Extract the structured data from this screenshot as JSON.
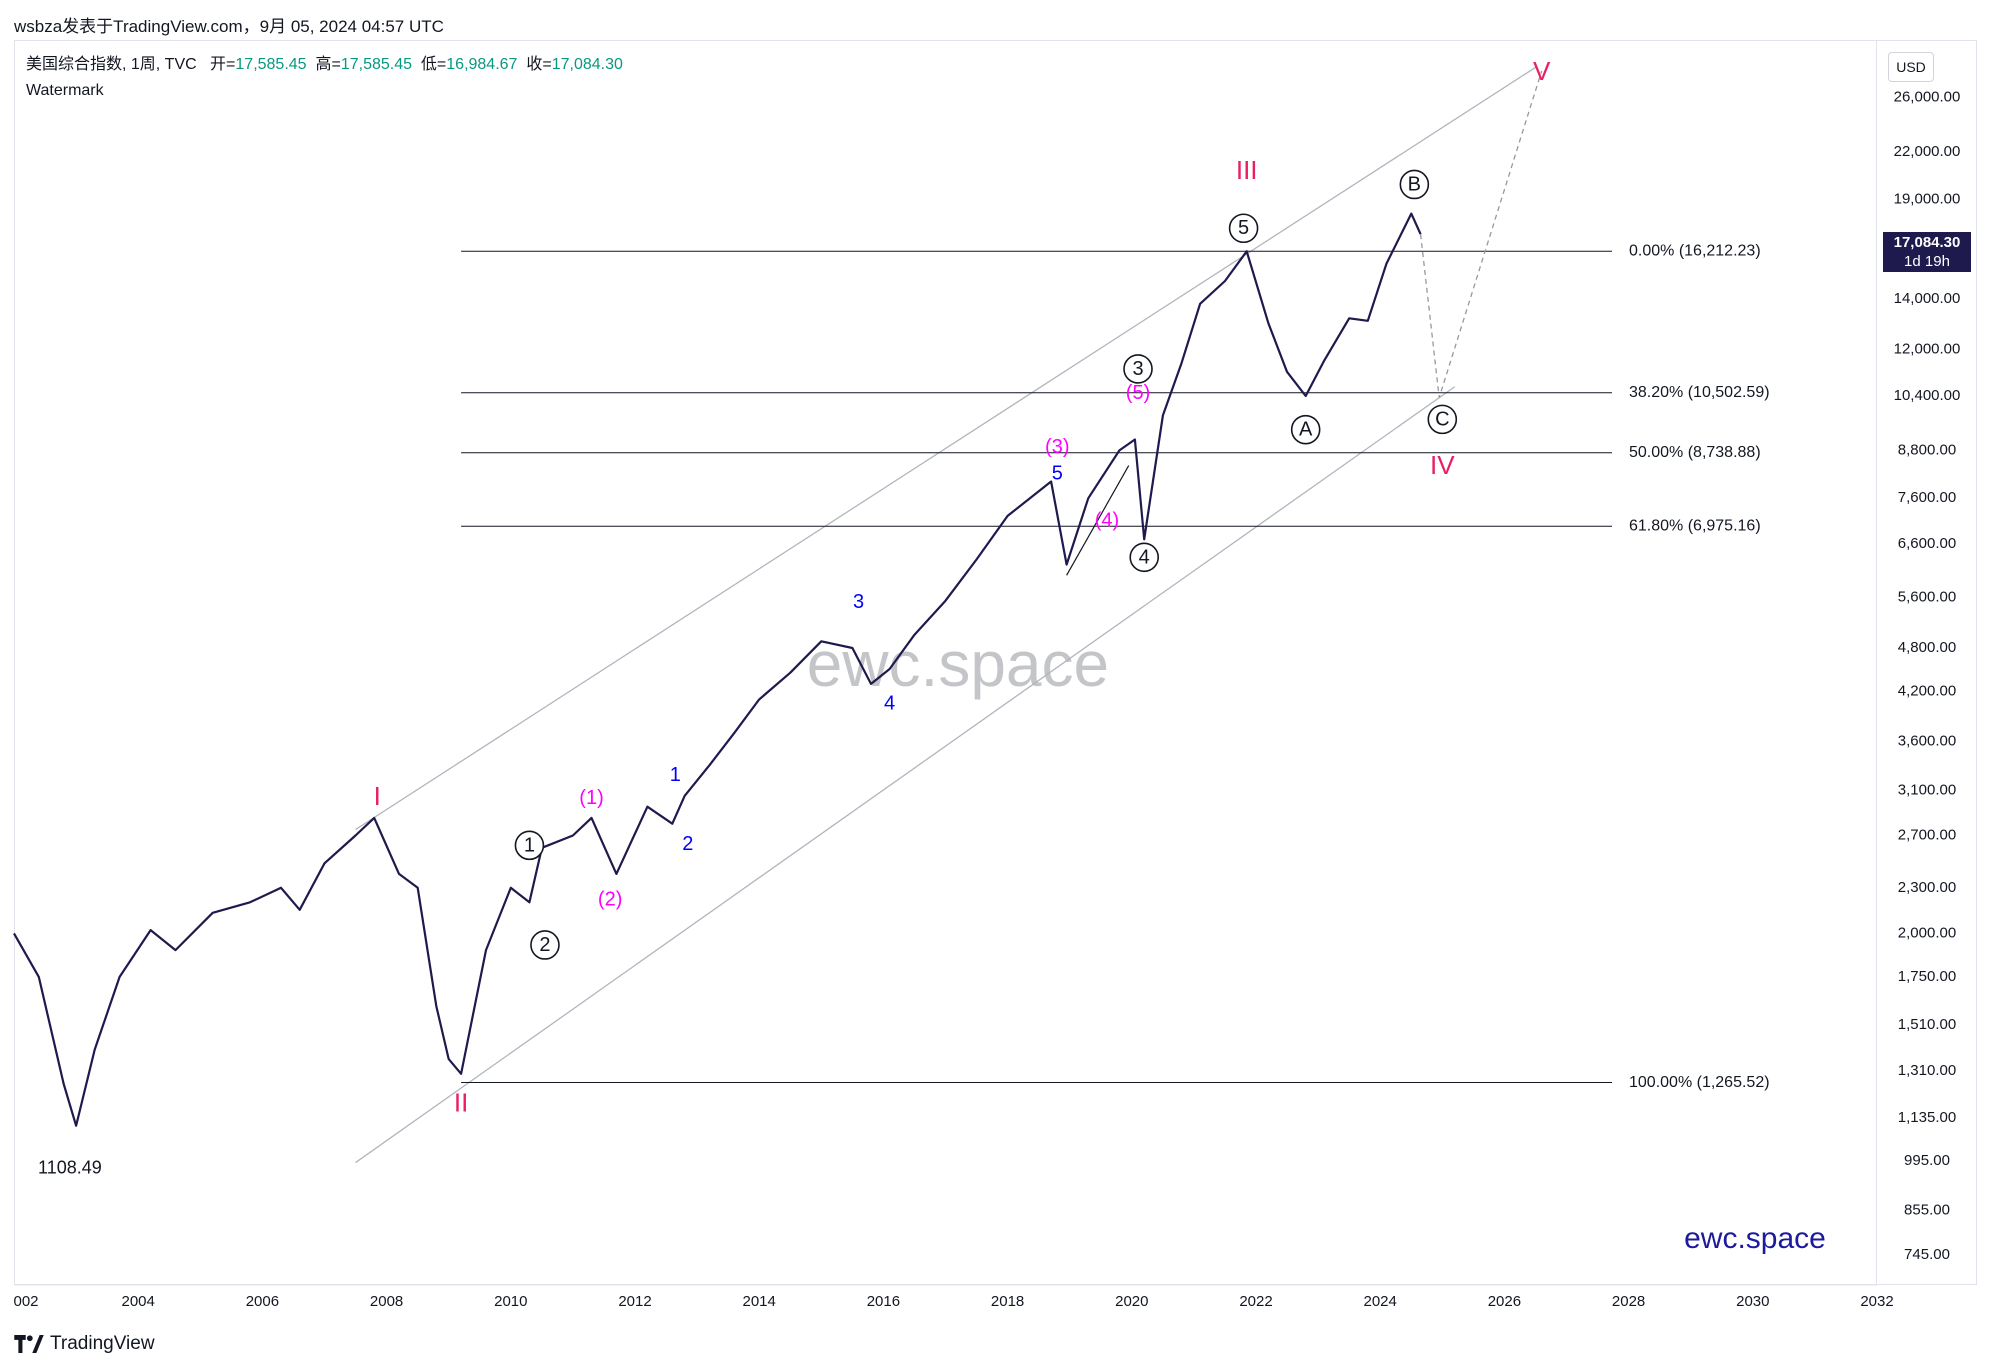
{
  "header": {
    "publisher": "wsbza发表于TradingView.com，9月 05, 2024 04:57 UTC"
  },
  "legend": {
    "symbol": "美国综合指数, 1周, TVC",
    "open_label": "开",
    "open": "17,585.45",
    "high_label": "高",
    "high": "17,585.45",
    "low_label": "低",
    "low": "16,984.67",
    "close_label": "收",
    "close": "17,084.30",
    "watermark_label": "Watermark"
  },
  "price_axis": {
    "currency_button": "USD",
    "current_price": "17,084.30",
    "countdown": "1d 19h"
  },
  "watermark": "ewc.space",
  "brand": "ewc.space",
  "footer": {
    "logo_text": "TradingView"
  },
  "colors": {
    "line": "#1e1a4d",
    "primary_wave": "#e91e63",
    "intermediate_wave": "#ff00ff",
    "minor_wave": "#0000ff",
    "circle_wave": "#131722",
    "channel": "#b2b5be",
    "fib": "#131722"
  },
  "chart_data": {
    "type": "line",
    "scale": "log",
    "x_range": [
      2002,
      2032
    ],
    "y_range": [
      680,
      31000
    ],
    "x_ticks": [
      "002",
      "2004",
      "2006",
      "2008",
      "2010",
      "2012",
      "2014",
      "2016",
      "2018",
      "2020",
      "2022",
      "2024",
      "2026",
      "2028",
      "2030",
      "2032"
    ],
    "y_ticks": [
      "26,000.00",
      "22,000.00",
      "19,000.00",
      "14,000.00",
      "12,000.00",
      "10,400.00",
      "8,800.00",
      "7,600.00",
      "6,600.00",
      "5,600.00",
      "4,800.00",
      "4,200.00",
      "3,600.00",
      "3,100.00",
      "2,700.00",
      "2,300.00",
      "2,000.00",
      "1,750.00",
      "1,510.00",
      "1,310.00",
      "1,135.00",
      "995.00",
      "855.00",
      "745.00"
    ],
    "y_tick_values": [
      26000,
      22000,
      19000,
      14000,
      12000,
      10400,
      8800,
      7600,
      6600,
      5600,
      4800,
      4200,
      3600,
      3100,
      2700,
      2300,
      2000,
      1750,
      1510,
      1310,
      1135,
      995,
      855,
      745
    ],
    "series": [
      {
        "x": [
          2002.0,
          2002.4,
          2002.8,
          2003.0,
          2003.3,
          2003.7,
          2004.2,
          2004.6,
          2005.2,
          2005.8,
          2006.3,
          2006.6,
          2007.0,
          2007.5,
          2007.8,
          2008.2,
          2008.5,
          2008.8,
          2009.0,
          2009.2,
          2009.6,
          2010.0,
          2010.3,
          2010.5,
          2011.0,
          2011.3,
          2011.7,
          2012.2,
          2012.6,
          2012.8,
          2013.2,
          2013.6,
          2014.0,
          2014.5,
          2015.0,
          2015.5,
          2015.8,
          2016.1,
          2016.5,
          2017.0,
          2017.5,
          2018.0,
          2018.7,
          2018.95,
          2019.3,
          2019.8,
          2020.05,
          2020.2,
          2020.5,
          2020.8,
          2021.1,
          2021.5,
          2021.85,
          2022.2,
          2022.5,
          2022.8,
          2023.1,
          2023.5,
          2023.8,
          2024.1,
          2024.5,
          2024.65
        ],
        "y": [
          2000,
          1750,
          1260,
          1108.49,
          1400,
          1750,
          2020,
          1900,
          2130,
          2200,
          2300,
          2150,
          2480,
          2700,
          2850,
          2400,
          2300,
          1600,
          1360,
          1300,
          1900,
          2300,
          2200,
          2600,
          2700,
          2850,
          2400,
          2950,
          2800,
          3050,
          3350,
          3700,
          4100,
          4450,
          4900,
          4800,
          4300,
          4500,
          5000,
          5550,
          6300,
          7200,
          8000,
          6200,
          7600,
          8800,
          9100,
          6700,
          9800,
          11500,
          13800,
          14800,
          16212,
          13000,
          11200,
          10400,
          11600,
          13200,
          13100,
          15600,
          18200,
          17084
        ]
      }
    ],
    "fib_levels": [
      {
        "label": "0.00% (16,212.23)",
        "value": 16212.23
      },
      {
        "label": "38.20% (10,502.59)",
        "value": 10502.59
      },
      {
        "label": "50.00% (8,738.88)",
        "value": 8738.88
      },
      {
        "label": "61.80% (6,975.16)",
        "value": 6975.16
      },
      {
        "label": "100.00% (1,265.52)",
        "value": 1265.52
      }
    ],
    "annotations": [
      {
        "text": "1108.49",
        "x": 2002.9,
        "y": 975,
        "kind": "plain"
      },
      {
        "text": "I",
        "x": 2007.85,
        "y": 3050,
        "kind": "primary"
      },
      {
        "text": "II",
        "x": 2009.2,
        "y": 1190,
        "kind": "primary"
      },
      {
        "text": "III",
        "x": 2021.85,
        "y": 20800,
        "kind": "primary"
      },
      {
        "text": "IV",
        "x": 2025.0,
        "y": 8420,
        "kind": "primary"
      },
      {
        "text": "V",
        "x": 2026.6,
        "y": 28200,
        "kind": "primary"
      },
      {
        "text": "1",
        "x": 2010.3,
        "y": 2620,
        "kind": "circle"
      },
      {
        "text": "2",
        "x": 2010.55,
        "y": 1930,
        "kind": "circle"
      },
      {
        "text": "3",
        "x": 2020.1,
        "y": 11300,
        "kind": "circle"
      },
      {
        "text": "4",
        "x": 2020.2,
        "y": 6340,
        "kind": "circle"
      },
      {
        "text": "5",
        "x": 2021.8,
        "y": 17400,
        "kind": "circle"
      },
      {
        "text": "A",
        "x": 2022.8,
        "y": 9380,
        "kind": "circle"
      },
      {
        "text": "B",
        "x": 2024.55,
        "y": 19900,
        "kind": "circle"
      },
      {
        "text": "C",
        "x": 2025.0,
        "y": 9680,
        "kind": "circle"
      },
      {
        "text": "(1)",
        "x": 2011.3,
        "y": 3030,
        "kind": "intermediate"
      },
      {
        "text": "(2)",
        "x": 2011.6,
        "y": 2220,
        "kind": "intermediate"
      },
      {
        "text": "(3)",
        "x": 2018.8,
        "y": 8900,
        "kind": "intermediate"
      },
      {
        "text": "(4)",
        "x": 2019.6,
        "y": 7100,
        "kind": "intermediate"
      },
      {
        "text": "(5)",
        "x": 2020.1,
        "y": 10500,
        "kind": "intermediate"
      },
      {
        "text": "1",
        "x": 2012.65,
        "y": 3250,
        "kind": "minor"
      },
      {
        "text": "2",
        "x": 2012.85,
        "y": 2630,
        "kind": "minor"
      },
      {
        "text": "3",
        "x": 2015.6,
        "y": 5530,
        "kind": "minor"
      },
      {
        "text": "4",
        "x": 2016.1,
        "y": 4050,
        "kind": "minor"
      },
      {
        "text": "5",
        "x": 2018.8,
        "y": 8200,
        "kind": "minor"
      }
    ],
    "channel": [
      {
        "x1": 2007.5,
        "y1": 2750,
        "x2": 2026.5,
        "y2": 28500
      },
      {
        "x1": 2007.5,
        "y1": 990,
        "x2": 2025.2,
        "y2": 10700
      }
    ],
    "projection": {
      "x": [
        2024.65,
        2024.95,
        2026.6
      ],
      "y": [
        17084,
        10350,
        28200
      ]
    }
  }
}
